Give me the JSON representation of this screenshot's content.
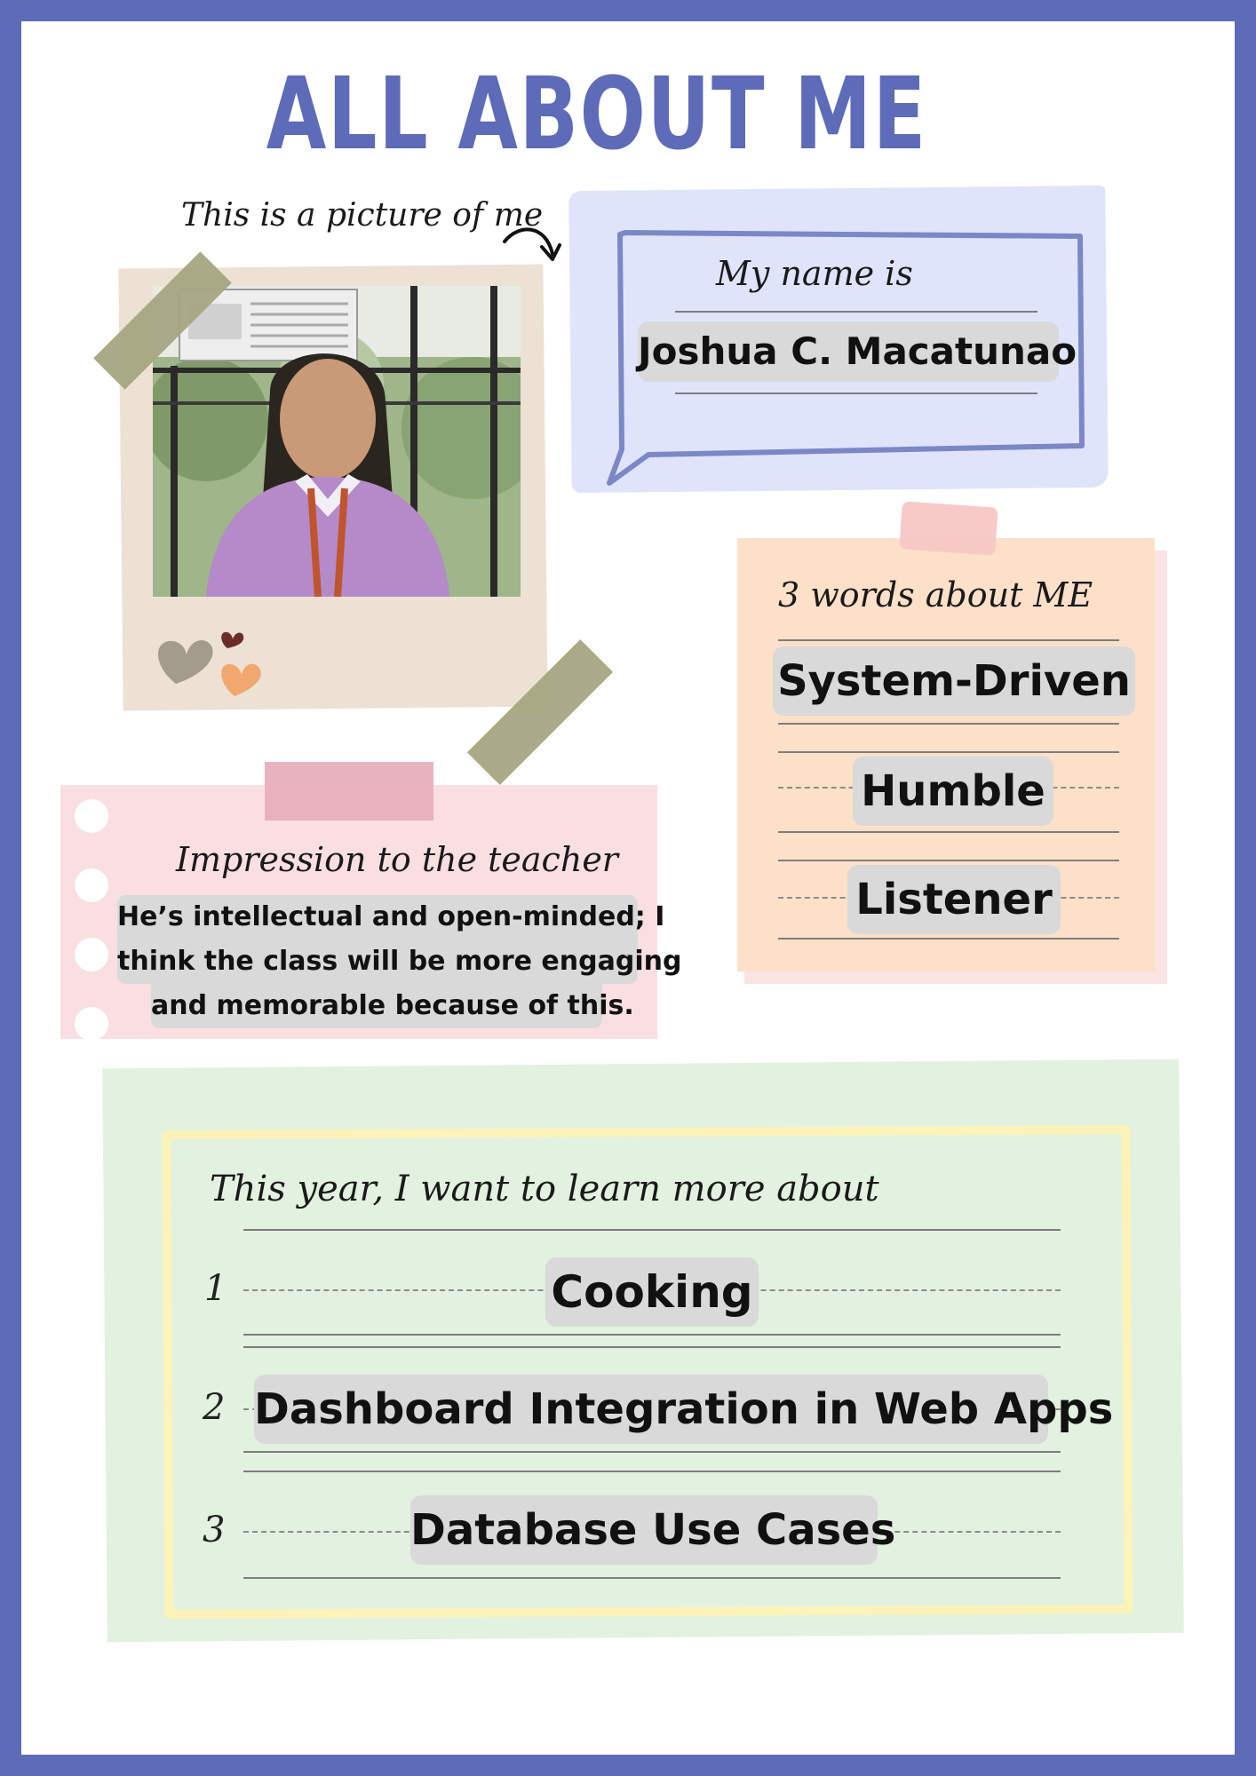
{
  "title": "ALL ABOUT ME",
  "photo": {
    "caption": "This is a picture of me",
    "alt": "Portrait photo"
  },
  "name_card": {
    "label": "My name is",
    "name": "Joshua C. Macatunao"
  },
  "words_card": {
    "label": "3 words about ME",
    "words": [
      "System-Driven",
      "Humble",
      "Listener"
    ]
  },
  "impression_card": {
    "label": "Impression to the teacher",
    "lines": [
      "He’s intellectual and open-minded; I",
      "think the class will be more engaging",
      "and memorable because of this."
    ]
  },
  "learn_card": {
    "label": "This year, I want to learn more about",
    "items": [
      {
        "number": "1",
        "text": "Cooking"
      },
      {
        "number": "2",
        "text": "Dashboard Integration in Web Apps"
      },
      {
        "number": "3",
        "text": "Database Use Cases"
      }
    ]
  },
  "colors": {
    "frame": "#5e6bb8",
    "name_card_bg": "#dfe4fb",
    "words_card_bg": "#fde0c8",
    "impression_card_bg": "#f9dfe2",
    "learn_card_bg": "#e3f1e0",
    "learn_frame": "#fbf3b8",
    "chip": "#d9d9d9",
    "tape_olive": "#a6a582"
  }
}
